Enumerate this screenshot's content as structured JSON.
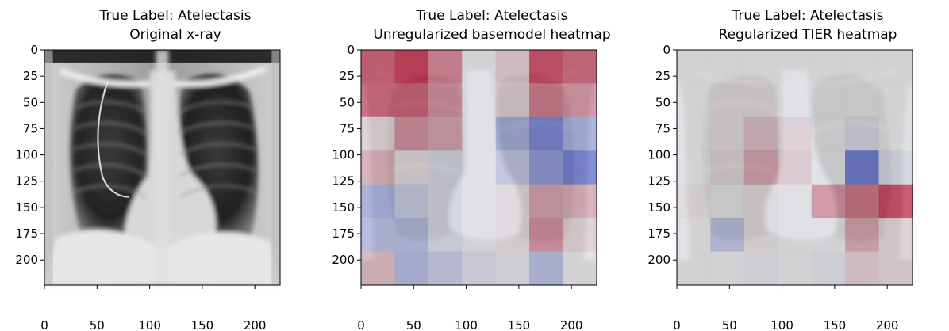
{
  "panels": [
    {
      "title_line1": "True Label: Atelectasis",
      "title_line2": "Original x-ray",
      "kind": "xray"
    },
    {
      "title_line1": "True Label: Atelectasis",
      "title_line2": "Unregularized basemodel heatmap",
      "kind": "heatmap",
      "grid": [
        [
          0.75,
          0.95,
          0.55,
          0.0,
          0.15,
          0.85,
          0.7
        ],
        [
          0.7,
          0.7,
          0.45,
          0.0,
          0.1,
          0.55,
          0.45
        ],
        [
          0.1,
          0.45,
          0.35,
          0.0,
          -0.45,
          -0.75,
          -0.45
        ],
        [
          0.3,
          0.05,
          -0.1,
          0.0,
          -0.25,
          -0.6,
          -0.8
        ],
        [
          -0.45,
          -0.2,
          -0.1,
          0.0,
          0.05,
          0.35,
          0.3
        ],
        [
          -0.35,
          -0.35,
          -0.1,
          0.0,
          0.05,
          0.45,
          0.1
        ],
        [
          0.25,
          -0.4,
          -0.25,
          -0.1,
          -0.05,
          -0.35,
          0.0
        ]
      ]
    },
    {
      "title_line1": "True Label: Atelectasis",
      "title_line2": "Regularized TIER heatmap",
      "kind": "heatmap",
      "grid": [
        [
          0.0,
          0.0,
          0.0,
          0.0,
          0.0,
          0.0,
          0.0
        ],
        [
          0.0,
          0.05,
          0.05,
          0.0,
          0.0,
          0.0,
          0.0
        ],
        [
          0.0,
          0.05,
          0.2,
          0.1,
          0.0,
          -0.1,
          0.0
        ],
        [
          0.0,
          0.1,
          0.35,
          0.15,
          0.0,
          -0.85,
          -0.1
        ],
        [
          0.05,
          0.0,
          0.05,
          0.0,
          0.45,
          0.6,
          0.85
        ],
        [
          0.0,
          -0.3,
          0.05,
          0.0,
          0.0,
          0.35,
          0.1
        ],
        [
          0.0,
          0.0,
          -0.05,
          0.0,
          -0.05,
          0.15,
          0.1
        ]
      ]
    }
  ],
  "axis": {
    "x_ticks": [
      "0",
      "50",
      "100",
      "150",
      "200"
    ],
    "y_ticks": [
      "0",
      "25",
      "50",
      "75",
      "100",
      "125",
      "150",
      "175",
      "200"
    ],
    "range": [
      0,
      224
    ]
  },
  "colors": {
    "cool": "#3b4cc0",
    "neutral": "#dddddd",
    "warm": "#b40426"
  }
}
